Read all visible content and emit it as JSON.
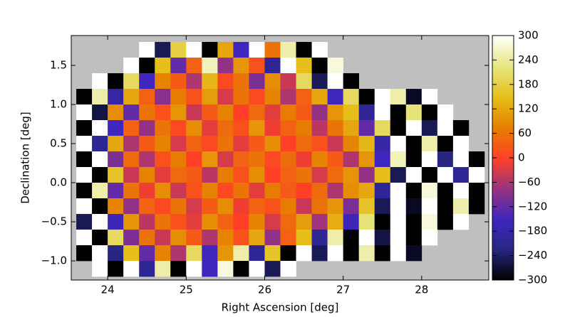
{
  "chart_data": {
    "type": "heatmap",
    "xlabel": "Right Ascension [deg]",
    "ylabel": "Declination [deg]",
    "x": [
      23.7,
      23.9,
      24.1,
      24.3,
      24.5,
      24.7,
      24.9,
      25.1,
      25.3,
      25.5,
      25.7,
      25.9,
      26.1,
      26.3,
      26.5,
      26.7,
      26.9,
      27.1,
      27.3,
      27.5,
      27.7,
      27.9,
      28.1,
      28.3,
      28.5,
      28.7
    ],
    "y": [
      1.7,
      1.5,
      1.3,
      1.1,
      0.9,
      0.7,
      0.5,
      0.3,
      0.1,
      -0.1,
      -0.3,
      -0.5,
      -0.7,
      -0.9,
      -1.1
    ],
    "z": [
      [
        null,
        null,
        null,
        null,
        300,
        -250,
        180,
        300,
        -300,
        120,
        -150,
        300,
        60,
        250,
        -300,
        300,
        null,
        null,
        null,
        null,
        null,
        null,
        null,
        null,
        null,
        null
      ],
      [
        null,
        null,
        null,
        300,
        -300,
        150,
        -120,
        40,
        260,
        -80,
        100,
        20,
        -200,
        300,
        150,
        -300,
        280,
        null,
        null,
        null,
        null,
        null,
        null,
        null,
        null,
        null
      ],
      [
        null,
        300,
        -300,
        200,
        -150,
        80,
        30,
        -60,
        140,
        10,
        60,
        -100,
        90,
        -40,
        200,
        -250,
        300,
        -300,
        null,
        null,
        null,
        null,
        null,
        null,
        null,
        null
      ],
      [
        -300,
        250,
        -180,
        120,
        40,
        -90,
        70,
        20,
        110,
        -30,
        60,
        10,
        80,
        -60,
        40,
        120,
        -150,
        200,
        -300,
        300,
        250,
        -280,
        300,
        null,
        null,
        null
      ],
      [
        300,
        -260,
        90,
        -120,
        60,
        20,
        100,
        -40,
        30,
        80,
        0,
        50,
        -20,
        70,
        30,
        -80,
        100,
        150,
        -200,
        300,
        -300,
        220,
        -300,
        300,
        null,
        null
      ],
      [
        -300,
        300,
        -150,
        40,
        -80,
        60,
        10,
        90,
        -20,
        50,
        20,
        100,
        -10,
        40,
        70,
        -50,
        60,
        120,
        -120,
        200,
        -300,
        300,
        -250,
        300,
        -300,
        null
      ],
      [
        300,
        -200,
        120,
        -60,
        30,
        80,
        -30,
        40,
        10,
        60,
        -20,
        30,
        90,
        0,
        50,
        20,
        -40,
        80,
        140,
        -180,
        300,
        -300,
        250,
        -300,
        300,
        null
      ],
      [
        -300,
        300,
        -100,
        50,
        -60,
        20,
        70,
        0,
        100,
        -30,
        40,
        60,
        10,
        50,
        -10,
        80,
        30,
        -60,
        100,
        -150,
        260,
        -300,
        300,
        -220,
        300,
        -300
      ],
      [
        300,
        -300,
        160,
        -40,
        80,
        -20,
        50,
        30,
        -50,
        70,
        20,
        90,
        0,
        40,
        60,
        -30,
        50,
        100,
        -80,
        150,
        -250,
        300,
        -300,
        300,
        -200,
        300
      ],
      [
        -300,
        250,
        -120,
        60,
        -10,
        90,
        -40,
        20,
        80,
        10,
        60,
        -20,
        70,
        30,
        0,
        50,
        -60,
        90,
        120,
        -200,
        300,
        -300,
        280,
        -300,
        300,
        -300
      ],
      [
        300,
        -300,
        80,
        -80,
        40,
        10,
        60,
        -30,
        30,
        90,
        -10,
        40,
        20,
        70,
        -40,
        60,
        100,
        -100,
        160,
        -250,
        300,
        -280,
        300,
        -300,
        250,
        -300
      ],
      [
        -250,
        300,
        -160,
        100,
        -50,
        60,
        20,
        -20,
        90,
        40,
        0,
        80,
        -30,
        50,
        110,
        -70,
        130,
        -160,
        220,
        -300,
        300,
        -300,
        280,
        -300,
        300,
        null
      ],
      [
        300,
        -300,
        200,
        -100,
        60,
        -40,
        90,
        30,
        -60,
        80,
        20,
        120,
        -80,
        40,
        150,
        -200,
        250,
        -300,
        300,
        -260,
        300,
        -300,
        300,
        null,
        null,
        null
      ],
      [
        -300,
        300,
        -220,
        150,
        -120,
        80,
        -60,
        200,
        -150,
        100,
        250,
        -200,
        160,
        -300,
        300,
        -250,
        300,
        -300,
        250,
        -300,
        300,
        -280,
        null,
        null,
        null,
        null
      ],
      [
        null,
        300,
        -300,
        300,
        -200,
        250,
        -300,
        300,
        -150,
        280,
        -300,
        300,
        -250,
        300,
        null,
        null,
        null,
        null,
        null,
        null,
        null,
        null,
        null,
        null,
        null,
        null
      ]
    ],
    "cell_size": 0.2,
    "xlim": [
      23.536,
      28.855
    ],
    "ylim": [
      -1.245,
      1.882
    ],
    "xticks": [
      24,
      25,
      26,
      27,
      28
    ],
    "yticks": [
      {
        "value": -1.0,
        "label": "−1.0"
      },
      {
        "value": -0.5,
        "label": "−0.5"
      },
      {
        "value": 0.0,
        "label": "0.0"
      },
      0.5,
      {
        "value": 1.0,
        "label": "1.0"
      },
      1.5
    ],
    "clim": [
      -300,
      300
    ],
    "cticks": [
      {
        "value": -300,
        "label": "−300"
      },
      {
        "value": -240,
        "label": "−240"
      },
      {
        "value": -180,
        "label": "−180"
      },
      {
        "value": -120,
        "label": "−120"
      },
      {
        "value": -60,
        "label": "−60"
      },
      0,
      60,
      120,
      180,
      240,
      300
    ],
    "colormap": [
      "#000000",
      "#262680",
      "#4026bf",
      "#993380",
      "#ff4026",
      "#e68000",
      "#e6bf1a",
      "#e6e680",
      "#ffffff"
    ],
    "background": "#bfbfbf"
  }
}
